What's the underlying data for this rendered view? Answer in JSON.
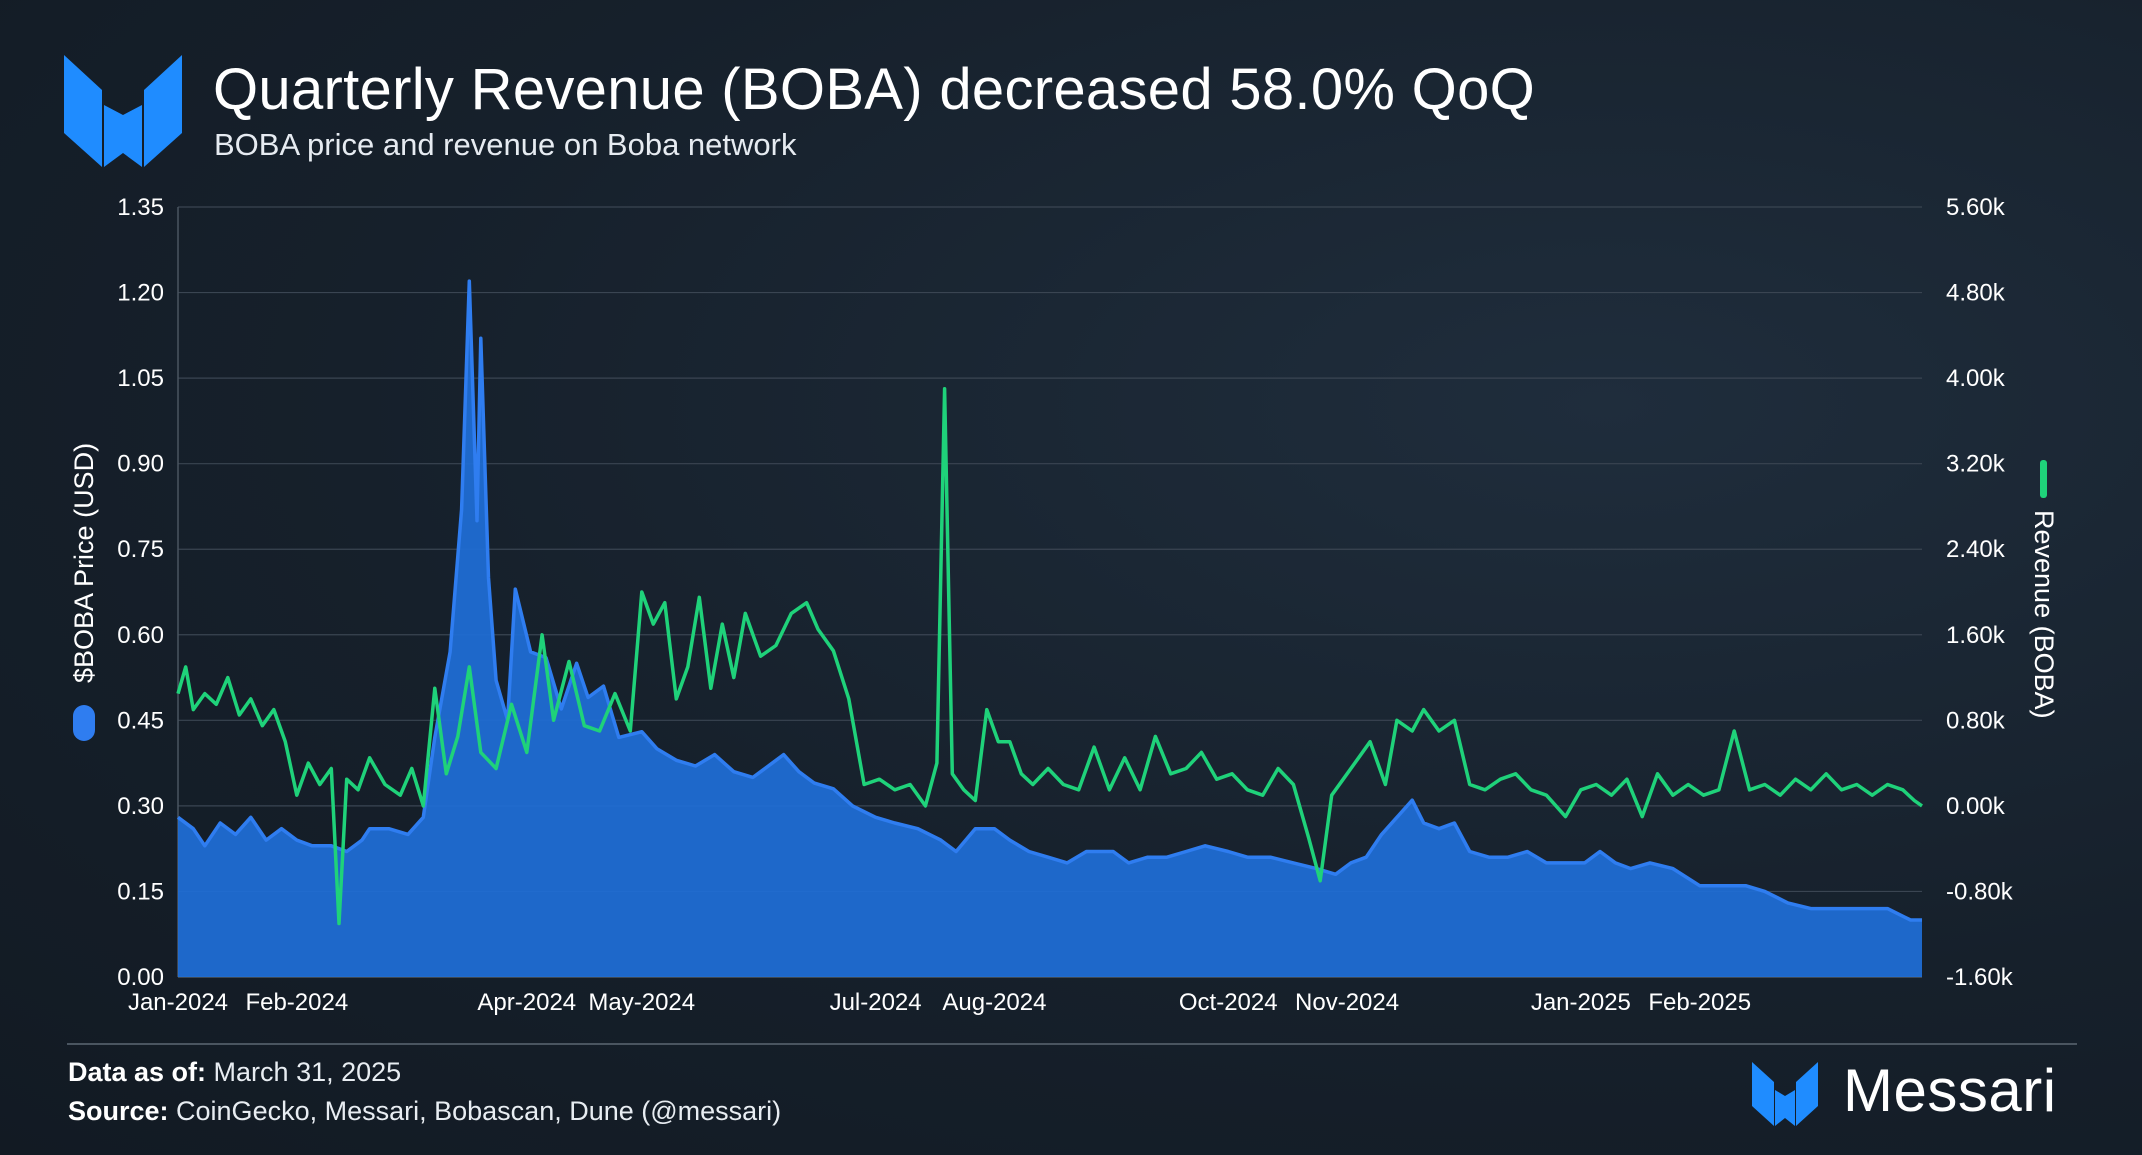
{
  "header": {
    "title": "Quarterly Revenue (BOBA) decreased 58.0% QoQ",
    "subtitle": "BOBA price and revenue on Boba network"
  },
  "footer": {
    "data_as_of_label": "Data as of:",
    "data_as_of_value": " March 31, 2025",
    "source_label": "Source:",
    "source_value": " CoinGecko, Messari, Bobascan, Dune (@messari)"
  },
  "brand": {
    "name": "Messari"
  },
  "colors": {
    "price": "#2f7df0",
    "price_fill": "#1f6fd8",
    "revenue": "#1fd27a",
    "grid": "#3a4552"
  },
  "chart_data": {
    "type": "area",
    "title": "Quarterly Revenue (BOBA) decreased 58.0% QoQ",
    "subtitle": "BOBA price and revenue on Boba network",
    "x_ticks": [
      "Jan-2024",
      "Feb-2024",
      "Apr-2024",
      "May-2024",
      "Jul-2024",
      "Aug-2024",
      "Oct-2024",
      "Nov-2024",
      "Jan-2025",
      "Feb-2025"
    ],
    "x_range": [
      "2024-01-01",
      "2025-03-31"
    ],
    "y_left": {
      "label": "$BOBA Price (USD)",
      "ticks": [
        "0.00",
        "0.15",
        "0.30",
        "0.45",
        "0.60",
        "0.75",
        "0.90",
        "1.05",
        "1.20",
        "1.35"
      ],
      "range": [
        0,
        1.35
      ]
    },
    "y_right": {
      "label": "Revenue (BOBA)",
      "ticks": [
        "-1.60k",
        "-0.80k",
        "0.00k",
        "0.80k",
        "1.60k",
        "2.40k",
        "3.20k",
        "4.00k",
        "4.80k",
        "5.60k"
      ],
      "range": [
        -1600,
        5600
      ]
    },
    "grid": true,
    "legend": "axis-markers",
    "series": [
      {
        "name": "$BOBA Price (USD)",
        "axis": "left",
        "style": "area",
        "points": [
          [
            "2024-01-01",
            0.28
          ],
          [
            "2024-01-05",
            0.26
          ],
          [
            "2024-01-08",
            0.23
          ],
          [
            "2024-01-12",
            0.27
          ],
          [
            "2024-01-16",
            0.25
          ],
          [
            "2024-01-20",
            0.28
          ],
          [
            "2024-01-24",
            0.24
          ],
          [
            "2024-01-28",
            0.26
          ],
          [
            "2024-02-01",
            0.24
          ],
          [
            "2024-02-05",
            0.23
          ],
          [
            "2024-02-10",
            0.23
          ],
          [
            "2024-02-14",
            0.22
          ],
          [
            "2024-02-18",
            0.24
          ],
          [
            "2024-02-20",
            0.26
          ],
          [
            "2024-02-25",
            0.26
          ],
          [
            "2024-03-01",
            0.25
          ],
          [
            "2024-03-05",
            0.28
          ],
          [
            "2024-03-08",
            0.42
          ],
          [
            "2024-03-12",
            0.57
          ],
          [
            "2024-03-15",
            0.82
          ],
          [
            "2024-03-17",
            1.22
          ],
          [
            "2024-03-19",
            0.8
          ],
          [
            "2024-03-20",
            1.12
          ],
          [
            "2024-03-22",
            0.7
          ],
          [
            "2024-03-24",
            0.52
          ],
          [
            "2024-03-27",
            0.45
          ],
          [
            "2024-03-29",
            0.68
          ],
          [
            "2024-04-02",
            0.57
          ],
          [
            "2024-04-06",
            0.56
          ],
          [
            "2024-04-10",
            0.47
          ],
          [
            "2024-04-14",
            0.55
          ],
          [
            "2024-04-17",
            0.49
          ],
          [
            "2024-04-21",
            0.51
          ],
          [
            "2024-04-25",
            0.42
          ],
          [
            "2024-05-01",
            0.43
          ],
          [
            "2024-05-05",
            0.4
          ],
          [
            "2024-05-10",
            0.38
          ],
          [
            "2024-05-15",
            0.37
          ],
          [
            "2024-05-20",
            0.39
          ],
          [
            "2024-05-25",
            0.36
          ],
          [
            "2024-05-30",
            0.35
          ],
          [
            "2024-06-03",
            0.37
          ],
          [
            "2024-06-07",
            0.39
          ],
          [
            "2024-06-11",
            0.36
          ],
          [
            "2024-06-15",
            0.34
          ],
          [
            "2024-06-20",
            0.33
          ],
          [
            "2024-06-25",
            0.3
          ],
          [
            "2024-07-01",
            0.28
          ],
          [
            "2024-07-06",
            0.27
          ],
          [
            "2024-07-12",
            0.26
          ],
          [
            "2024-07-18",
            0.24
          ],
          [
            "2024-07-22",
            0.22
          ],
          [
            "2024-07-27",
            0.26
          ],
          [
            "2024-08-01",
            0.26
          ],
          [
            "2024-08-05",
            0.24
          ],
          [
            "2024-08-10",
            0.22
          ],
          [
            "2024-08-15",
            0.21
          ],
          [
            "2024-08-20",
            0.2
          ],
          [
            "2024-08-25",
            0.22
          ],
          [
            "2024-09-01",
            0.22
          ],
          [
            "2024-09-05",
            0.2
          ],
          [
            "2024-09-10",
            0.21
          ],
          [
            "2024-09-15",
            0.21
          ],
          [
            "2024-09-20",
            0.22
          ],
          [
            "2024-09-25",
            0.23
          ],
          [
            "2024-10-01",
            0.22
          ],
          [
            "2024-10-06",
            0.21
          ],
          [
            "2024-10-12",
            0.21
          ],
          [
            "2024-10-18",
            0.2
          ],
          [
            "2024-10-24",
            0.19
          ],
          [
            "2024-10-29",
            0.18
          ],
          [
            "2024-11-02",
            0.2
          ],
          [
            "2024-11-06",
            0.21
          ],
          [
            "2024-11-10",
            0.25
          ],
          [
            "2024-11-14",
            0.28
          ],
          [
            "2024-11-18",
            0.31
          ],
          [
            "2024-11-21",
            0.27
          ],
          [
            "2024-11-25",
            0.26
          ],
          [
            "2024-11-29",
            0.27
          ],
          [
            "2024-12-03",
            0.22
          ],
          [
            "2024-12-08",
            0.21
          ],
          [
            "2024-12-13",
            0.21
          ],
          [
            "2024-12-18",
            0.22
          ],
          [
            "2024-12-23",
            0.2
          ],
          [
            "2024-12-28",
            0.2
          ],
          [
            "2025-01-02",
            0.2
          ],
          [
            "2025-01-06",
            0.22
          ],
          [
            "2025-01-10",
            0.2
          ],
          [
            "2025-01-14",
            0.19
          ],
          [
            "2025-01-19",
            0.2
          ],
          [
            "2025-01-25",
            0.19
          ],
          [
            "2025-02-01",
            0.16
          ],
          [
            "2025-02-07",
            0.16
          ],
          [
            "2025-02-13",
            0.16
          ],
          [
            "2025-02-18",
            0.15
          ],
          [
            "2025-02-24",
            0.13
          ],
          [
            "2025-03-02",
            0.12
          ],
          [
            "2025-03-08",
            0.12
          ],
          [
            "2025-03-15",
            0.12
          ],
          [
            "2025-03-22",
            0.12
          ],
          [
            "2025-03-28",
            0.1
          ],
          [
            "2025-03-31",
            0.1
          ]
        ]
      },
      {
        "name": "Revenue (BOBA)",
        "axis": "right",
        "style": "line",
        "points": [
          [
            "2024-01-01",
            1050
          ],
          [
            "2024-01-03",
            1300
          ],
          [
            "2024-01-05",
            900
          ],
          [
            "2024-01-08",
            1050
          ],
          [
            "2024-01-11",
            950
          ],
          [
            "2024-01-14",
            1200
          ],
          [
            "2024-01-17",
            850
          ],
          [
            "2024-01-20",
            1000
          ],
          [
            "2024-01-23",
            750
          ],
          [
            "2024-01-26",
            900
          ],
          [
            "2024-01-29",
            600
          ],
          [
            "2024-02-01",
            100
          ],
          [
            "2024-02-04",
            400
          ],
          [
            "2024-02-07",
            200
          ],
          [
            "2024-02-10",
            350
          ],
          [
            "2024-02-12",
            -1100
          ],
          [
            "2024-02-14",
            250
          ],
          [
            "2024-02-17",
            150
          ],
          [
            "2024-02-20",
            450
          ],
          [
            "2024-02-24",
            200
          ],
          [
            "2024-02-28",
            100
          ],
          [
            "2024-03-02",
            350
          ],
          [
            "2024-03-05",
            0
          ],
          [
            "2024-03-08",
            1100
          ],
          [
            "2024-03-11",
            300
          ],
          [
            "2024-03-14",
            650
          ],
          [
            "2024-03-17",
            1300
          ],
          [
            "2024-03-20",
            500
          ],
          [
            "2024-03-24",
            350
          ],
          [
            "2024-03-28",
            950
          ],
          [
            "2024-04-01",
            500
          ],
          [
            "2024-04-05",
            1600
          ],
          [
            "2024-04-08",
            800
          ],
          [
            "2024-04-12",
            1350
          ],
          [
            "2024-04-16",
            750
          ],
          [
            "2024-04-20",
            700
          ],
          [
            "2024-04-24",
            1050
          ],
          [
            "2024-04-28",
            700
          ],
          [
            "2024-05-01",
            2000
          ],
          [
            "2024-05-04",
            1700
          ],
          [
            "2024-05-07",
            1900
          ],
          [
            "2024-05-10",
            1000
          ],
          [
            "2024-05-13",
            1300
          ],
          [
            "2024-05-16",
            1950
          ],
          [
            "2024-05-19",
            1100
          ],
          [
            "2024-05-22",
            1700
          ],
          [
            "2024-05-25",
            1200
          ],
          [
            "2024-05-28",
            1800
          ],
          [
            "2024-06-01",
            1400
          ],
          [
            "2024-06-05",
            1500
          ],
          [
            "2024-06-09",
            1800
          ],
          [
            "2024-06-13",
            1900
          ],
          [
            "2024-06-16",
            1650
          ],
          [
            "2024-06-20",
            1450
          ],
          [
            "2024-06-24",
            1000
          ],
          [
            "2024-06-28",
            200
          ],
          [
            "2024-07-02",
            250
          ],
          [
            "2024-07-06",
            150
          ],
          [
            "2024-07-10",
            200
          ],
          [
            "2024-07-14",
            0
          ],
          [
            "2024-07-17",
            400
          ],
          [
            "2024-07-19",
            3900
          ],
          [
            "2024-07-21",
            300
          ],
          [
            "2024-07-24",
            150
          ],
          [
            "2024-07-27",
            50
          ],
          [
            "2024-07-30",
            900
          ],
          [
            "2024-08-02",
            600
          ],
          [
            "2024-08-05",
            600
          ],
          [
            "2024-08-08",
            300
          ],
          [
            "2024-08-11",
            200
          ],
          [
            "2024-08-15",
            350
          ],
          [
            "2024-08-19",
            200
          ],
          [
            "2024-08-23",
            150
          ],
          [
            "2024-08-27",
            550
          ],
          [
            "2024-08-31",
            150
          ],
          [
            "2024-09-04",
            450
          ],
          [
            "2024-09-08",
            150
          ],
          [
            "2024-09-12",
            650
          ],
          [
            "2024-09-16",
            300
          ],
          [
            "2024-09-20",
            350
          ],
          [
            "2024-09-24",
            500
          ],
          [
            "2024-09-28",
            250
          ],
          [
            "2024-10-02",
            300
          ],
          [
            "2024-10-06",
            150
          ],
          [
            "2024-10-10",
            100
          ],
          [
            "2024-10-14",
            350
          ],
          [
            "2024-10-18",
            200
          ],
          [
            "2024-10-22",
            -300
          ],
          [
            "2024-10-25",
            -700
          ],
          [
            "2024-10-28",
            100
          ],
          [
            "2024-11-01",
            300
          ],
          [
            "2024-11-04",
            450
          ],
          [
            "2024-11-07",
            600
          ],
          [
            "2024-11-11",
            200
          ],
          [
            "2024-11-14",
            800
          ],
          [
            "2024-11-18",
            700
          ],
          [
            "2024-11-21",
            900
          ],
          [
            "2024-11-25",
            700
          ],
          [
            "2024-11-29",
            800
          ],
          [
            "2024-12-03",
            200
          ],
          [
            "2024-12-07",
            150
          ],
          [
            "2024-12-11",
            250
          ],
          [
            "2024-12-15",
            300
          ],
          [
            "2024-12-19",
            150
          ],
          [
            "2024-12-23",
            100
          ],
          [
            "2024-12-28",
            -100
          ],
          [
            "2025-01-01",
            150
          ],
          [
            "2025-01-05",
            200
          ],
          [
            "2025-01-09",
            100
          ],
          [
            "2025-01-13",
            250
          ],
          [
            "2025-01-17",
            -100
          ],
          [
            "2025-01-21",
            300
          ],
          [
            "2025-01-25",
            100
          ],
          [
            "2025-01-29",
            200
          ],
          [
            "2025-02-02",
            100
          ],
          [
            "2025-02-06",
            150
          ],
          [
            "2025-02-10",
            700
          ],
          [
            "2025-02-14",
            150
          ],
          [
            "2025-02-18",
            200
          ],
          [
            "2025-02-22",
            100
          ],
          [
            "2025-02-26",
            250
          ],
          [
            "2025-03-02",
            150
          ],
          [
            "2025-03-06",
            300
          ],
          [
            "2025-03-10",
            150
          ],
          [
            "2025-03-14",
            200
          ],
          [
            "2025-03-18",
            100
          ],
          [
            "2025-03-22",
            200
          ],
          [
            "2025-03-26",
            150
          ],
          [
            "2025-03-29",
            50
          ],
          [
            "2025-03-31",
            0
          ]
        ]
      }
    ]
  }
}
